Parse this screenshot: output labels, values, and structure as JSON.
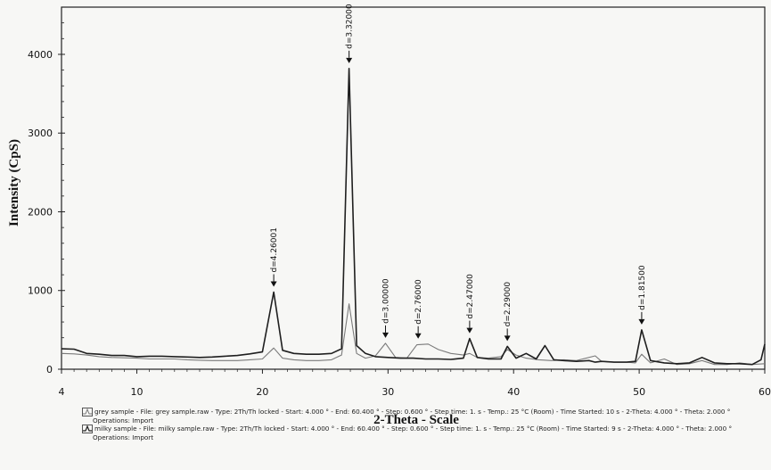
{
  "chart_data": {
    "type": "line",
    "xlabel": "2-Theta - Scale",
    "ylabel": "Intensity (CpS)",
    "xlim": [
      4,
      60
    ],
    "ylim": [
      0,
      4600
    ],
    "x_ticks": [
      4,
      10,
      20,
      30,
      40,
      50,
      60
    ],
    "y_ticks": [
      0,
      1000,
      2000,
      3000,
      4000
    ],
    "series": [
      {
        "name": "milky sample",
        "color": "#1f1f1f",
        "points": [
          [
            4,
            260
          ],
          [
            5,
            255
          ],
          [
            6,
            200
          ],
          [
            7,
            190
          ],
          [
            8,
            175
          ],
          [
            9,
            175
          ],
          [
            10,
            160
          ],
          [
            11,
            165
          ],
          [
            12,
            165
          ],
          [
            13,
            160
          ],
          [
            14,
            155
          ],
          [
            15,
            150
          ],
          [
            16,
            155
          ],
          [
            17,
            165
          ],
          [
            18,
            175
          ],
          [
            19,
            195
          ],
          [
            20,
            220
          ],
          [
            20.9,
            980
          ],
          [
            21.6,
            240
          ],
          [
            22.5,
            200
          ],
          [
            23.5,
            190
          ],
          [
            24.5,
            190
          ],
          [
            25.5,
            200
          ],
          [
            26.3,
            260
          ],
          [
            26.9,
            3820
          ],
          [
            27.5,
            300
          ],
          [
            28.2,
            200
          ],
          [
            29,
            160
          ],
          [
            30,
            150
          ],
          [
            31,
            140
          ],
          [
            32,
            140
          ],
          [
            33,
            130
          ],
          [
            34,
            130
          ],
          [
            35,
            125
          ],
          [
            36,
            140
          ],
          [
            36.5,
            390
          ],
          [
            37.1,
            150
          ],
          [
            38,
            130
          ],
          [
            39,
            130
          ],
          [
            39.5,
            290
          ],
          [
            40.2,
            140
          ],
          [
            41,
            200
          ],
          [
            41.8,
            130
          ],
          [
            42.5,
            300
          ],
          [
            43.2,
            120
          ],
          [
            44,
            110
          ],
          [
            45,
            100
          ],
          [
            46,
            110
          ],
          [
            46.5,
            90
          ],
          [
            47,
            100
          ],
          [
            48,
            90
          ],
          [
            49,
            90
          ],
          [
            49.7,
            100
          ],
          [
            50.2,
            500
          ],
          [
            50.9,
            110
          ],
          [
            52,
            80
          ],
          [
            53,
            70
          ],
          [
            54,
            80
          ],
          [
            55,
            150
          ],
          [
            56,
            80
          ],
          [
            57,
            70
          ],
          [
            58,
            70
          ],
          [
            59,
            60
          ],
          [
            59.7,
            120
          ],
          [
            60,
            320
          ]
        ]
      },
      {
        "name": "grey sample",
        "color": "#7a7a7a",
        "points": [
          [
            4,
            200
          ],
          [
            5,
            195
          ],
          [
            6,
            180
          ],
          [
            7,
            160
          ],
          [
            8,
            150
          ],
          [
            9,
            145
          ],
          [
            10,
            140
          ],
          [
            11,
            130
          ],
          [
            12,
            130
          ],
          [
            13,
            130
          ],
          [
            14,
            120
          ],
          [
            15,
            115
          ],
          [
            16,
            110
          ],
          [
            17,
            110
          ],
          [
            18,
            110
          ],
          [
            19,
            120
          ],
          [
            20,
            130
          ],
          [
            20.9,
            270
          ],
          [
            21.6,
            140
          ],
          [
            22.5,
            120
          ],
          [
            23.5,
            110
          ],
          [
            24.5,
            110
          ],
          [
            25.5,
            120
          ],
          [
            26.3,
            180
          ],
          [
            26.9,
            830
          ],
          [
            27.5,
            200
          ],
          [
            28.2,
            140
          ],
          [
            29,
            170
          ],
          [
            29.8,
            330
          ],
          [
            30.6,
            150
          ],
          [
            31.5,
            140
          ],
          [
            32.3,
            310
          ],
          [
            33.2,
            320
          ],
          [
            34,
            250
          ],
          [
            35,
            200
          ],
          [
            36,
            180
          ],
          [
            36.5,
            200
          ],
          [
            37.1,
            150
          ],
          [
            38,
            140
          ],
          [
            39,
            160
          ],
          [
            39.5,
            250
          ],
          [
            40.2,
            180
          ],
          [
            41,
            140
          ],
          [
            42,
            120
          ],
          [
            43,
            110
          ],
          [
            44,
            120
          ],
          [
            45,
            110
          ],
          [
            46.5,
            170
          ],
          [
            47,
            100
          ],
          [
            48,
            90
          ],
          [
            49,
            90
          ],
          [
            49.7,
            80
          ],
          [
            50.2,
            190
          ],
          [
            50.9,
            80
          ],
          [
            52,
            130
          ],
          [
            53,
            60
          ],
          [
            54,
            70
          ],
          [
            55,
            110
          ],
          [
            56,
            60
          ],
          [
            57,
            60
          ],
          [
            58,
            80
          ],
          [
            59,
            60
          ],
          [
            60,
            70
          ]
        ]
      }
    ],
    "annotations": [
      {
        "label": "d=4.26001",
        "x": 20.9,
        "y": 980
      },
      {
        "label": "d=3.32000",
        "x": 26.9,
        "y": 3820
      },
      {
        "label": "d=3.00000",
        "x": 29.8,
        "y": 330
      },
      {
        "label": "d=2.76000",
        "x": 32.4,
        "y": 320
      },
      {
        "label": "d=2.47000",
        "x": 36.5,
        "y": 390
      },
      {
        "label": "d=2.29000",
        "x": 39.5,
        "y": 290
      },
      {
        "label": "d=1.81500",
        "x": 50.2,
        "y": 500
      }
    ]
  },
  "legend": {
    "items": [
      {
        "text": "grey sample - File: grey sample.raw - Type: 2Th/Th locked - Start: 4.000 ° - End: 60.400 ° - Step: 0.600 ° - Step time: 1. s - Temp.: 25 °C (Room) - Time Started: 10 s - 2-Theta: 4.000 ° - Theta: 2.000 °",
        "sub": "Operations: Import"
      },
      {
        "text": "milky sample - File: milky sample.raw - Type: 2Th/Th locked - Start: 4.000 ° - End: 60.400 ° - Step: 0.600 ° - Step time: 1. s - Temp.: 25 °C (Room) - Time Started: 9 s - 2-Theta: 4.000 ° - Theta: 2.000 °",
        "sub": "Operations: Import"
      }
    ]
  }
}
